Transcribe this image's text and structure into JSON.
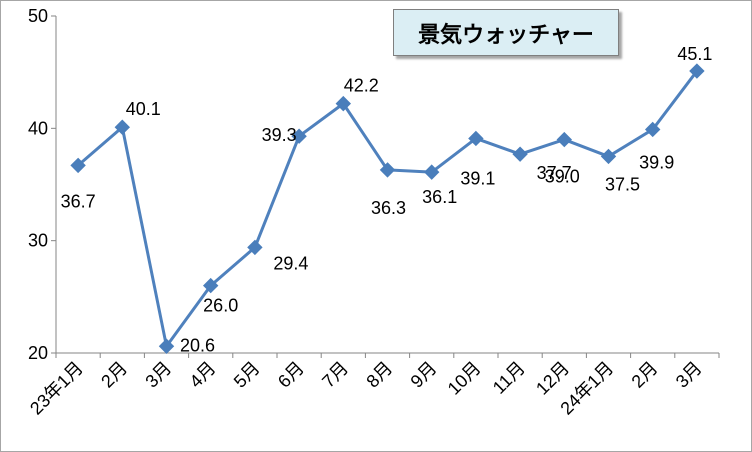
{
  "chart_data": {
    "type": "line",
    "title": "景気ウォッチャー",
    "categories": [
      "23年1月",
      "2月",
      "3月",
      "4月",
      "5月",
      "6月",
      "7月",
      "8月",
      "9月",
      "10月",
      "11月",
      "12月",
      "24年1月",
      "2月",
      "3月"
    ],
    "series": [
      {
        "values": [
          36.7,
          40.1,
          20.6,
          26.0,
          29.4,
          39.3,
          42.2,
          36.3,
          36.1,
          39.1,
          37.7,
          39.0,
          37.5,
          39.9,
          45.1
        ]
      }
    ],
    "data_labels": [
      "36.7",
      "40.1",
      "20.6",
      "26.0",
      "29.4",
      "39.3",
      "42.2",
      "36.3",
      "36.1",
      "39.1",
      "37.7",
      "39.0",
      "37.5",
      "39.9",
      "45.1"
    ],
    "ylim": [
      20,
      50
    ],
    "yticks": [
      "20",
      "30",
      "40",
      "50"
    ],
    "grid": false,
    "legend": "none",
    "colors": {
      "line": "#4f81bd",
      "marker": "#4a7ebb",
      "axis": "#868686",
      "title_bg": "#dbeef4"
    }
  }
}
